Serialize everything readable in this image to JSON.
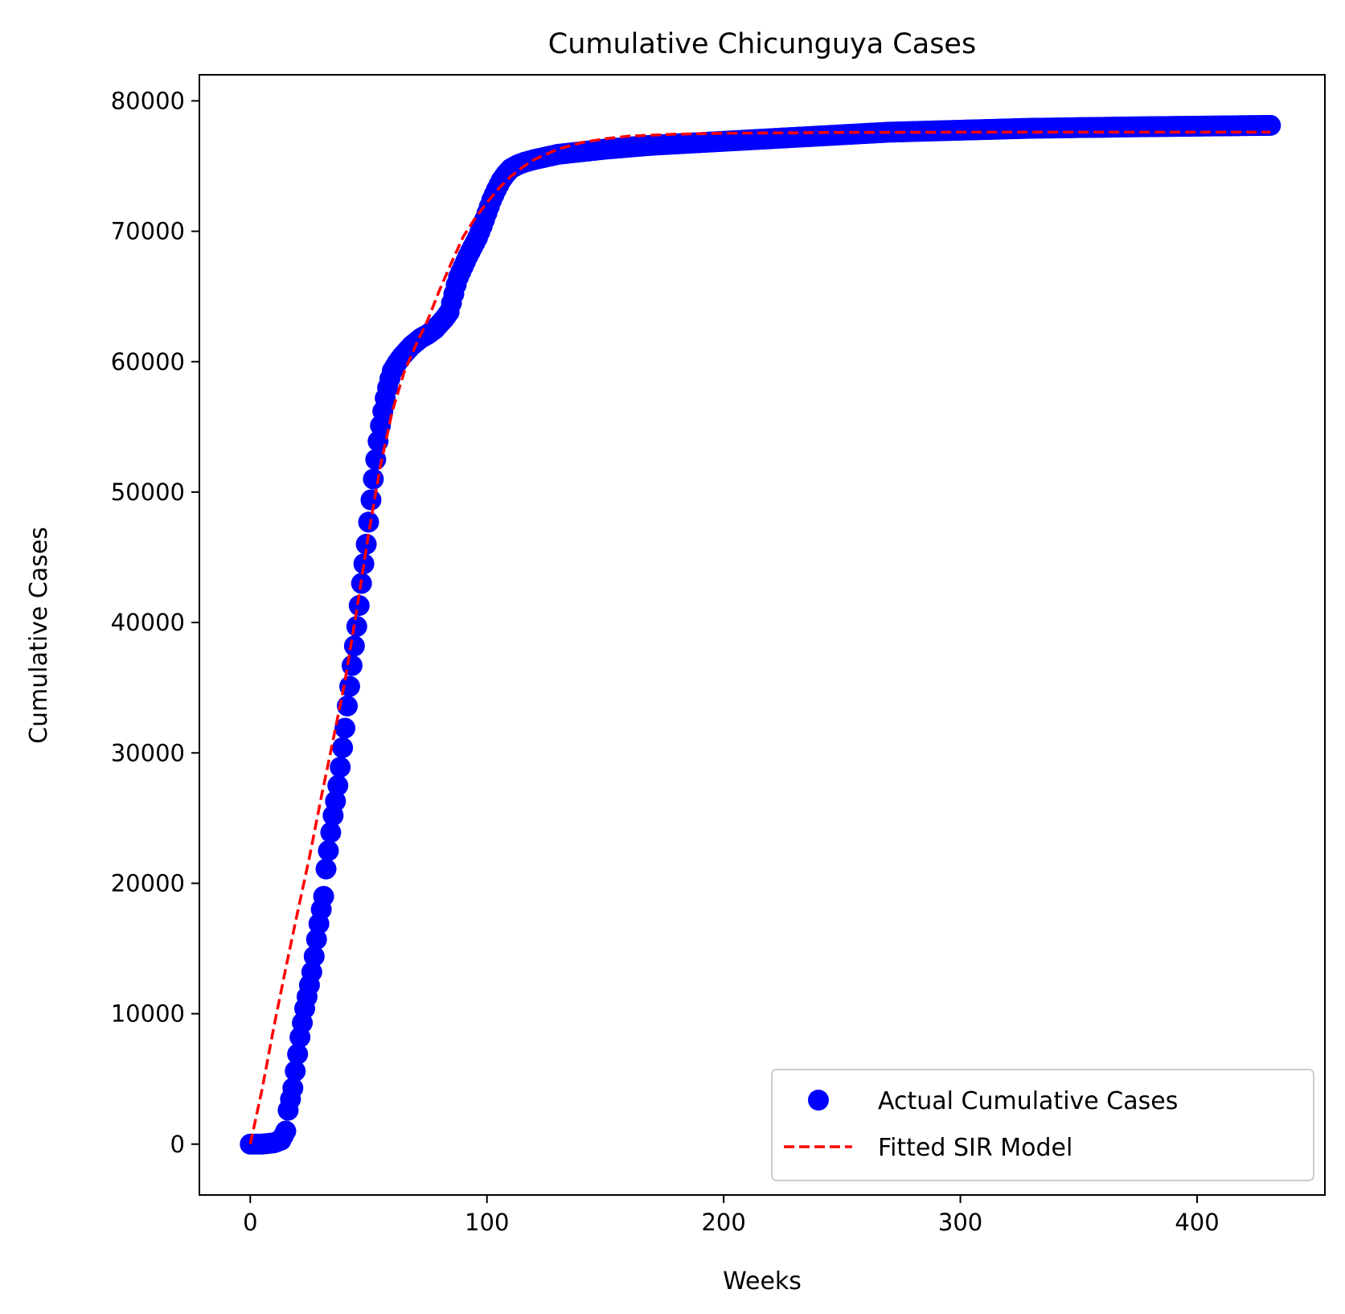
{
  "chart_data": {
    "type": "line",
    "title": "Cumulative Chicunguya Cases",
    "xlabel": "Weeks",
    "ylabel": "Cumulative Cases",
    "xlim": [
      -21.5,
      454
    ],
    "ylim": [
      -3900,
      82000
    ],
    "x_ticks": [
      0,
      100,
      200,
      300,
      400
    ],
    "y_ticks": [
      0,
      10000,
      20000,
      30000,
      40000,
      50000,
      60000,
      70000,
      80000
    ],
    "grid": false,
    "legend_position": "lower right",
    "series": [
      {
        "name": "Actual Cumulative Cases",
        "kind": "scatter",
        "color": "#0000ff",
        "points": [
          [
            0,
            0
          ],
          [
            5,
            0
          ],
          [
            10,
            100
          ],
          [
            13,
            300
          ],
          [
            15,
            1000
          ],
          [
            16,
            2600
          ],
          [
            18,
            4300
          ],
          [
            19,
            5600
          ],
          [
            20,
            6900
          ],
          [
            21,
            8200
          ],
          [
            22,
            9300
          ],
          [
            23,
            10400
          ],
          [
            24,
            11300
          ],
          [
            25,
            12200
          ],
          [
            26,
            13200
          ],
          [
            27,
            14400
          ],
          [
            28,
            15700
          ],
          [
            29,
            16900
          ],
          [
            30,
            18000
          ],
          [
            31,
            19000
          ],
          [
            32,
            21100
          ],
          [
            33,
            22500
          ],
          [
            34,
            23900
          ],
          [
            35,
            25200
          ],
          [
            36,
            26300
          ],
          [
            37,
            27500
          ],
          [
            38,
            28900
          ],
          [
            39,
            30400
          ],
          [
            40,
            31900
          ],
          [
            41,
            33600
          ],
          [
            42,
            35100
          ],
          [
            43,
            36700
          ],
          [
            44,
            38200
          ],
          [
            45,
            39700
          ],
          [
            46,
            41300
          ],
          [
            47,
            43000
          ],
          [
            48,
            44500
          ],
          [
            49,
            46000
          ],
          [
            50,
            47700
          ],
          [
            51,
            49400
          ],
          [
            52,
            51000
          ],
          [
            53,
            52500
          ],
          [
            54,
            53900
          ],
          [
            55,
            55100
          ],
          [
            56,
            56200
          ],
          [
            57,
            57200
          ],
          [
            58,
            58000
          ],
          [
            59,
            58700
          ],
          [
            60,
            59300
          ],
          [
            62,
            59900
          ],
          [
            64,
            60400
          ],
          [
            66,
            60800
          ],
          [
            68,
            61200
          ],
          [
            70,
            61500
          ],
          [
            72,
            61800
          ],
          [
            75,
            62100
          ],
          [
            78,
            62500
          ],
          [
            80,
            62900
          ],
          [
            82,
            63300
          ],
          [
            84,
            63800
          ],
          [
            85,
            64500
          ],
          [
            86,
            65200
          ],
          [
            87,
            65900
          ],
          [
            88,
            66500
          ],
          [
            90,
            67300
          ],
          [
            92,
            68100
          ],
          [
            94,
            68800
          ],
          [
            96,
            69500
          ],
          [
            98,
            70400
          ],
          [
            100,
            71400
          ],
          [
            102,
            72400
          ],
          [
            104,
            73200
          ],
          [
            106,
            73900
          ],
          [
            108,
            74400
          ],
          [
            110,
            74800
          ],
          [
            113,
            75100
          ],
          [
            116,
            75300
          ],
          [
            120,
            75500
          ],
          [
            125,
            75700
          ],
          [
            130,
            75900
          ],
          [
            140,
            76100
          ],
          [
            150,
            76300
          ],
          [
            160,
            76450
          ],
          [
            170,
            76600
          ],
          [
            180,
            76700
          ],
          [
            190,
            76800
          ],
          [
            200,
            76900
          ],
          [
            210,
            77000
          ],
          [
            220,
            77100
          ],
          [
            230,
            77200
          ],
          [
            240,
            77300
          ],
          [
            250,
            77400
          ],
          [
            260,
            77500
          ],
          [
            270,
            77600
          ],
          [
            280,
            77650
          ],
          [
            290,
            77700
          ],
          [
            300,
            77750
          ],
          [
            310,
            77800
          ],
          [
            320,
            77850
          ],
          [
            330,
            77900
          ],
          [
            340,
            77920
          ],
          [
            350,
            77950
          ],
          [
            360,
            77970
          ],
          [
            370,
            78000
          ],
          [
            380,
            78020
          ],
          [
            390,
            78040
          ],
          [
            400,
            78060
          ],
          [
            410,
            78080
          ],
          [
            420,
            78100
          ],
          [
            431,
            78120
          ]
        ]
      },
      {
        "name": "Fitted SIR Model",
        "kind": "line",
        "style": "dashed",
        "color": "#ff0000",
        "points": [
          [
            0,
            0
          ],
          [
            5,
            4200
          ],
          [
            10,
            9000
          ],
          [
            15,
            13500
          ],
          [
            20,
            17800
          ],
          [
            25,
            22000
          ],
          [
            30,
            26600
          ],
          [
            35,
            31000
          ],
          [
            40,
            35500
          ],
          [
            45,
            41000
          ],
          [
            50,
            46800
          ],
          [
            55,
            52000
          ],
          [
            60,
            56200
          ],
          [
            65,
            59200
          ],
          [
            70,
            61300
          ],
          [
            75,
            63200
          ],
          [
            80,
            65500
          ],
          [
            85,
            67600
          ],
          [
            90,
            69600
          ],
          [
            95,
            71000
          ],
          [
            100,
            72200
          ],
          [
            105,
            73300
          ],
          [
            110,
            74200
          ],
          [
            115,
            74900
          ],
          [
            120,
            75500
          ],
          [
            130,
            76300
          ],
          [
            140,
            76800
          ],
          [
            150,
            77100
          ],
          [
            160,
            77300
          ],
          [
            180,
            77450
          ],
          [
            200,
            77520
          ],
          [
            250,
            77580
          ],
          [
            300,
            77600
          ],
          [
            350,
            77600
          ],
          [
            400,
            77600
          ],
          [
            431,
            77600
          ]
        ]
      }
    ]
  }
}
